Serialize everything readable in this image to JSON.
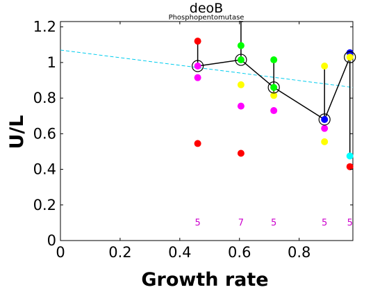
{
  "chart_data": {
    "type": "scatter",
    "title": "deoB",
    "subtitle": "Phosphopentomutase",
    "xlabel": "Growth rate",
    "ylabel": "U/L",
    "xlim": [
      0,
      0.98
    ],
    "ylim": [
      0,
      1.23
    ],
    "xticks": [
      "0",
      "0.2",
      "0.4",
      "0.6",
      "0.8"
    ],
    "xtick_values": [
      0,
      0.2,
      0.4,
      0.6,
      0.8
    ],
    "yticks": [
      "0",
      "0.2",
      "0.4",
      "0.6",
      "0.8",
      "1",
      "1.2"
    ],
    "ytick_values": [
      0,
      0.2,
      0.4,
      0.6,
      0.8,
      1.0,
      1.2
    ],
    "grid": false,
    "colors": {
      "red": "#ff0000",
      "magenta": "#ff00ff",
      "green": "#00ff00",
      "yellow": "#ffff00",
      "blue": "#0000ff",
      "cyan": "#00ffff",
      "trend": "#00ccee",
      "mean_line": "#000000",
      "count_text": "#cc00cc"
    },
    "trend_line": {
      "x": [
        0,
        0.98
      ],
      "y": [
        1.07,
        0.86
      ]
    },
    "mean_series": {
      "x": [
        0.46,
        0.605,
        0.715,
        0.885,
        0.97
      ],
      "y": [
        0.98,
        1.015,
        0.86,
        0.68,
        1.03
      ],
      "errorbars": [
        {
          "low": 0.98,
          "high": 1.12
        },
        {
          "low": 1.015,
          "high": 1.23
        },
        {
          "low": 0.82,
          "high": 1.01
        },
        {
          "low": 0.68,
          "high": 0.98
        },
        {
          "low": 0.48,
          "high": 1.04
        }
      ]
    },
    "points": [
      {
        "x": 0.46,
        "y": 1.12,
        "color": "red"
      },
      {
        "x": 0.46,
        "y": 0.98,
        "color": "magenta"
      },
      {
        "x": 0.46,
        "y": 0.915,
        "color": "magenta"
      },
      {
        "x": 0.46,
        "y": 0.545,
        "color": "red"
      },
      {
        "x": 0.605,
        "y": 1.095,
        "color": "green"
      },
      {
        "x": 0.605,
        "y": 1.015,
        "color": "green"
      },
      {
        "x": 0.605,
        "y": 0.875,
        "color": "yellow"
      },
      {
        "x": 0.605,
        "y": 0.755,
        "color": "magenta"
      },
      {
        "x": 0.605,
        "y": 0.49,
        "color": "red"
      },
      {
        "x": 0.715,
        "y": 1.015,
        "color": "green"
      },
      {
        "x": 0.715,
        "y": 0.86,
        "color": "green"
      },
      {
        "x": 0.715,
        "y": 0.815,
        "color": "yellow"
      },
      {
        "x": 0.715,
        "y": 0.73,
        "color": "magenta"
      },
      {
        "x": 0.885,
        "y": 0.98,
        "color": "yellow"
      },
      {
        "x": 0.885,
        "y": 0.68,
        "color": "blue"
      },
      {
        "x": 0.885,
        "y": 0.63,
        "color": "magenta"
      },
      {
        "x": 0.885,
        "y": 0.555,
        "color": "yellow"
      },
      {
        "x": 0.97,
        "y": 1.055,
        "color": "blue"
      },
      {
        "x": 0.97,
        "y": 1.03,
        "color": "yellow"
      },
      {
        "x": 0.97,
        "y": 0.475,
        "color": "cyan"
      },
      {
        "x": 0.97,
        "y": 0.415,
        "color": "red"
      }
    ],
    "counts": [
      {
        "x": 0.46,
        "label": "5"
      },
      {
        "x": 0.605,
        "label": "7"
      },
      {
        "x": 0.715,
        "label": "5"
      },
      {
        "x": 0.885,
        "label": "5"
      },
      {
        "x": 0.97,
        "label": "5"
      }
    ],
    "count_y": 0.1
  }
}
